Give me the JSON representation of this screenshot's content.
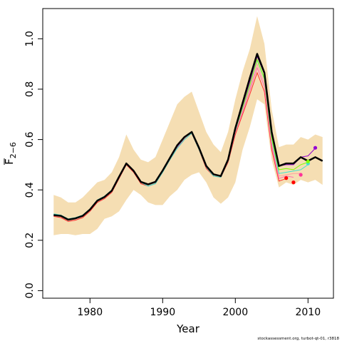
{
  "chart_data": {
    "type": "line",
    "xlabel": "Year",
    "ylabel_base": "F",
    "ylabel_sub": "2−6",
    "xlim": [
      1973.5,
      2013.5
    ],
    "ylim": [
      -0.03,
      1.12
    ],
    "x_ticks": [
      1980,
      1990,
      2000,
      2010
    ],
    "x_tick_labels": [
      "1980",
      "1990",
      "2000",
      "2010"
    ],
    "y_ticks": [
      0.0,
      0.2,
      0.4,
      0.6,
      0.8,
      1.0
    ],
    "y_tick_labels": [
      "0.0",
      "0.2",
      "0.4",
      "0.6",
      "0.8",
      "1.0"
    ],
    "band_color": "#f5deb3",
    "band": {
      "x": [
        1975,
        1976,
        1977,
        1978,
        1979,
        1980,
        1981,
        1982,
        1983,
        1984,
        1985,
        1986,
        1987,
        1988,
        1989,
        1990,
        1991,
        1992,
        1993,
        1994,
        1995,
        1996,
        1997,
        1998,
        1999,
        2000,
        2001,
        2002,
        2003,
        2004,
        2005,
        2006,
        2007,
        2008,
        2009,
        2010,
        2011,
        2012
      ],
      "upper": [
        0.38,
        0.37,
        0.35,
        0.35,
        0.37,
        0.4,
        0.43,
        0.44,
        0.47,
        0.53,
        0.62,
        0.56,
        0.52,
        0.51,
        0.53,
        0.6,
        0.67,
        0.74,
        0.77,
        0.79,
        0.71,
        0.63,
        0.58,
        0.55,
        0.63,
        0.76,
        0.87,
        0.96,
        1.09,
        0.98,
        0.72,
        0.57,
        0.58,
        0.58,
        0.61,
        0.6,
        0.62,
        0.61
      ],
      "lower": [
        0.22,
        0.225,
        0.225,
        0.22,
        0.225,
        0.225,
        0.245,
        0.285,
        0.295,
        0.315,
        0.36,
        0.4,
        0.38,
        0.35,
        0.34,
        0.34,
        0.375,
        0.4,
        0.44,
        0.46,
        0.47,
        0.43,
        0.37,
        0.345,
        0.37,
        0.43,
        0.56,
        0.65,
        0.76,
        0.74,
        0.52,
        0.41,
        0.43,
        0.42,
        0.44,
        0.43,
        0.44,
        0.42
      ]
    },
    "retro_series": [
      {
        "color": "#ff3030",
        "end": 2007,
        "values": [
          0.295,
          0.29,
          0.275,
          0.28,
          0.29,
          0.315,
          0.35,
          0.365,
          0.39,
          0.445,
          0.5,
          0.47,
          0.425,
          0.415,
          0.425,
          0.47,
          0.52,
          0.565,
          0.6,
          0.625,
          0.56,
          0.485,
          0.455,
          0.45,
          0.51,
          0.62,
          0.7,
          0.78,
          0.865,
          0.79,
          0.56,
          0.435,
          0.445
        ]
      },
      {
        "color": "#ff69b4",
        "end": 2008,
        "values": [
          0.3,
          0.295,
          0.28,
          0.285,
          0.295,
          0.32,
          0.355,
          0.37,
          0.395,
          0.45,
          0.505,
          0.475,
          0.43,
          0.42,
          0.43,
          0.475,
          0.525,
          0.57,
          0.605,
          0.63,
          0.565,
          0.49,
          0.46,
          0.455,
          0.515,
          0.63,
          0.71,
          0.795,
          0.885,
          0.81,
          0.575,
          0.445,
          0.455,
          0.45
        ]
      },
      {
        "color": "#ffa0a0",
        "end": 2009,
        "values": [
          0.3,
          0.297,
          0.282,
          0.287,
          0.297,
          0.322,
          0.357,
          0.372,
          0.397,
          0.452,
          0.505,
          0.476,
          0.432,
          0.422,
          0.432,
          0.477,
          0.527,
          0.572,
          0.607,
          0.628,
          0.567,
          0.492,
          0.462,
          0.457,
          0.517,
          0.635,
          0.72,
          0.805,
          0.9,
          0.825,
          0.59,
          0.455,
          0.46,
          0.465,
          0.465
        ]
      },
      {
        "color": "#40e0d0",
        "end": 2010,
        "values": [
          0.305,
          0.3,
          0.285,
          0.29,
          0.3,
          0.325,
          0.36,
          0.375,
          0.4,
          0.455,
          0.505,
          0.475,
          0.43,
          0.415,
          0.425,
          0.47,
          0.52,
          0.565,
          0.6,
          0.625,
          0.56,
          0.49,
          0.455,
          0.45,
          0.515,
          0.635,
          0.725,
          0.815,
          0.915,
          0.84,
          0.6,
          0.465,
          0.47,
          0.475,
          0.48,
          0.5
        ]
      },
      {
        "color": "#7fff00",
        "end": 2010,
        "values": [
          0.3,
          0.297,
          0.282,
          0.287,
          0.297,
          0.322,
          0.357,
          0.372,
          0.397,
          0.452,
          0.505,
          0.476,
          0.432,
          0.422,
          0.432,
          0.477,
          0.527,
          0.572,
          0.607,
          0.628,
          0.567,
          0.492,
          0.462,
          0.457,
          0.517,
          0.637,
          0.728,
          0.818,
          0.918,
          0.843,
          0.605,
          0.48,
          0.485,
          0.48,
          0.5,
          0.51
        ]
      },
      {
        "color": "#9400d3",
        "end": 2011,
        "values": [
          0.3,
          0.297,
          0.282,
          0.287,
          0.297,
          0.322,
          0.357,
          0.372,
          0.397,
          0.452,
          0.505,
          0.476,
          0.432,
          0.422,
          0.432,
          0.477,
          0.527,
          0.572,
          0.607,
          0.628,
          0.567,
          0.492,
          0.462,
          0.457,
          0.517,
          0.64,
          0.735,
          0.83,
          0.93,
          0.86,
          0.62,
          0.495,
          0.5,
          0.5,
          0.53,
          0.535,
          0.565
        ]
      }
    ],
    "main_series": {
      "color": "#000000",
      "x": [
        1975,
        1976,
        1977,
        1978,
        1979,
        1980,
        1981,
        1982,
        1983,
        1984,
        1985,
        1986,
        1987,
        1988,
        1989,
        1990,
        1991,
        1992,
        1993,
        1994,
        1995,
        1996,
        1997,
        1998,
        1999,
        2000,
        2001,
        2002,
        2003,
        2004,
        2005,
        2006,
        2007,
        2008,
        2009,
        2010,
        2011,
        2012
      ],
      "values": [
        0.3,
        0.297,
        0.282,
        0.287,
        0.297,
        0.322,
        0.357,
        0.372,
        0.397,
        0.452,
        0.505,
        0.476,
        0.432,
        0.422,
        0.432,
        0.477,
        0.527,
        0.577,
        0.61,
        0.63,
        0.567,
        0.495,
        0.462,
        0.455,
        0.52,
        0.645,
        0.745,
        0.845,
        0.94,
        0.865,
        0.63,
        0.495,
        0.505,
        0.505,
        0.53,
        0.515,
        0.53,
        0.515
      ]
    },
    "endpoints": [
      {
        "x": 2007,
        "y": 0.447,
        "color": "#ff0000"
      },
      {
        "x": 2008,
        "y": 0.43,
        "color": "#ff0000"
      },
      {
        "x": 2009,
        "y": 0.46,
        "color": "#ff3399"
      },
      {
        "x": 2010,
        "y": 0.505,
        "color": "#40e0d0"
      },
      {
        "x": 2010,
        "y": 0.513,
        "color": "#7fff00"
      },
      {
        "x": 2011,
        "y": 0.567,
        "color": "#9400d3"
      }
    ]
  },
  "footer": {
    "credit": "stockassessment.org, turbot-qt-01, r3818"
  }
}
